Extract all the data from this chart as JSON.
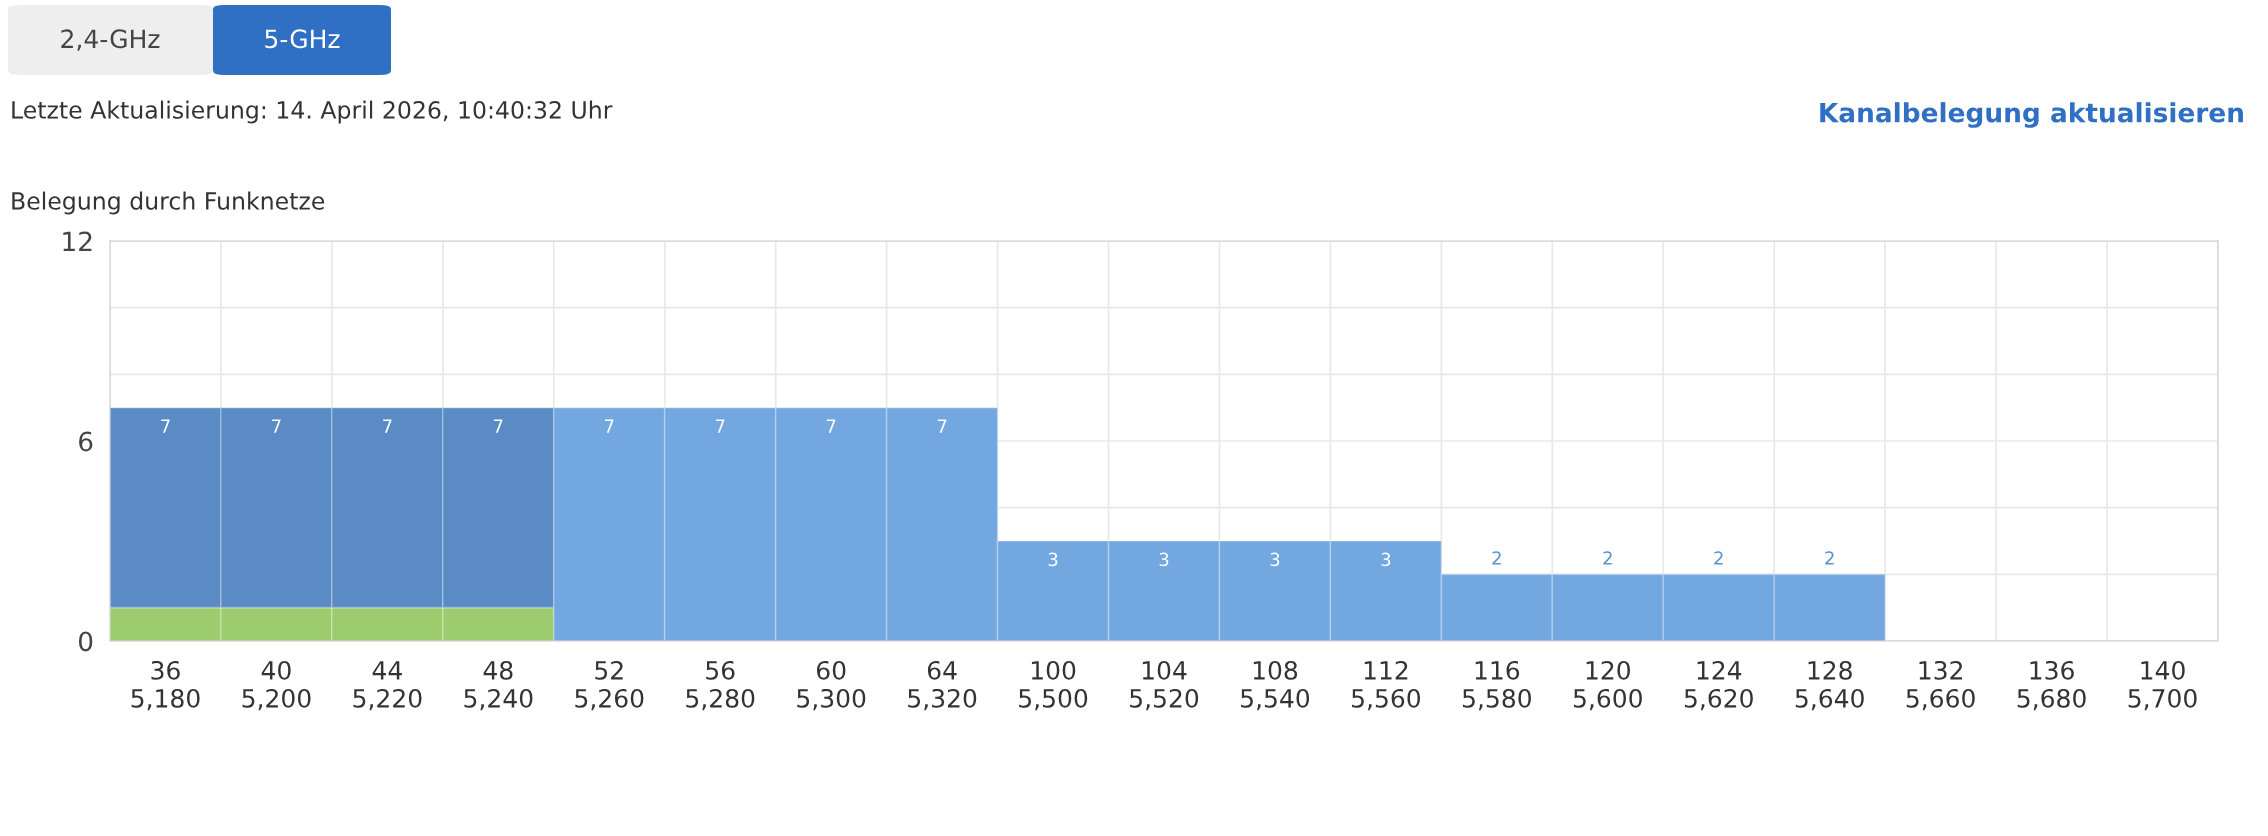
{
  "chart_data": {
    "type": "bar",
    "title": "Belegung durch Funknetze",
    "annotations": [
      "2,4-GHz",
      "5-GHz",
      "Letzte Aktualisierung: 14. April 2026, 10:40:32 Uhr",
      "Kanalbelegung aktualisieren"
    ],
    "categories": [
      "36\n5,180",
      "40\n5,200",
      "44\n5,220",
      "48\n5,240",
      "52\n5,260",
      "56\n5,280",
      "60\n5,300",
      "64\n5,320",
      "100\n5,500",
      "104\n5,520",
      "108\n5,540",
      "112\n5,560",
      "116\n5,580",
      "120\n5,600",
      "124\n5,620",
      "128\n5,640",
      "132\n5,660",
      "136\n5,680",
      "140\n5,700"
    ],
    "stacked": true,
    "series": [
      {
        "color": "#9ccc6e",
        "values": [
          1,
          1,
          1,
          1,
          null,
          null,
          null,
          null,
          null,
          null,
          null,
          null,
          null,
          null,
          null,
          null,
          null,
          null,
          null
        ]
      },
      {
        "colors": [
          "#5b8bc5",
          "#5b8bc5",
          "#5b8bc5",
          "#5b8bc5",
          "#72a7e0",
          "#72a7e0",
          "#72a7e0",
          "#72a7e0",
          "#72a7e0",
          "#72a7e0",
          "#72a7e0",
          "#72a7e0",
          "#72a7e0",
          "#72a7e0",
          "#72a7e0",
          "#72a7e0",
          "#72a7e0",
          "#72a7e0",
          "#72a7e0"
        ],
        "values": [
          6,
          6,
          6,
          6,
          7,
          7,
          7,
          7,
          3,
          3,
          3,
          3,
          2,
          2,
          2,
          2,
          null,
          null,
          null
        ]
      }
    ],
    "totals": [
      "7",
      "7",
      "7",
      "7",
      "7",
      "7",
      "7",
      "7",
      "3",
      "3",
      "3",
      "3",
      "2",
      "2",
      "2",
      "2",
      null,
      null,
      null
    ],
    "ylim": [
      0,
      12
    ],
    "yticks": [
      0,
      {
        "value": 2,
        "label": null
      },
      {
        "value": 4,
        "label": null
      },
      6,
      {
        "value": 8,
        "label": null
      },
      {
        "value": 10,
        "label": null
      },
      12
    ],
    "grid": true,
    "legend": false
  }
}
